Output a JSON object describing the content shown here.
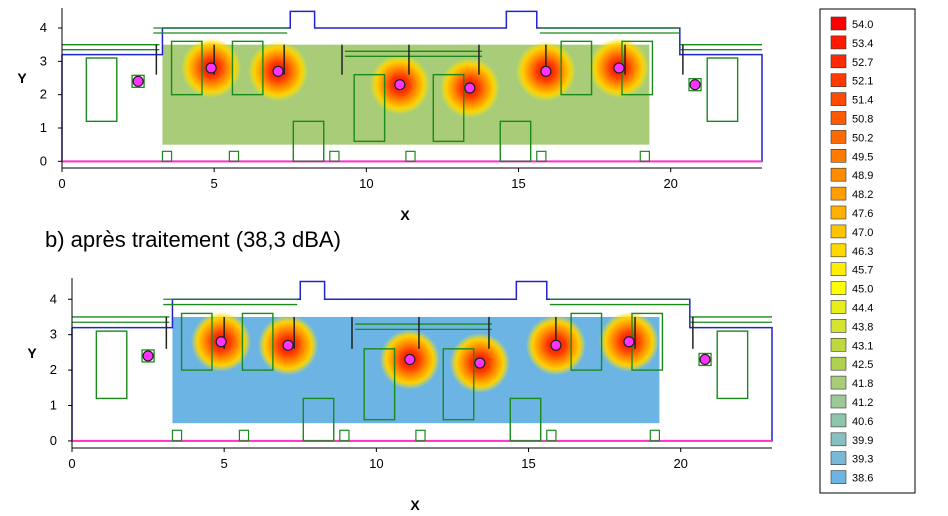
{
  "caption_b": "b) après traitement  (38,3 dBA)",
  "chart_data": [
    {
      "type": "heatmap",
      "id": "a",
      "xlabel": "X",
      "ylabel": "Y",
      "xlim": [
        0,
        23
      ],
      "ylim": [
        -0.2,
        4.6
      ],
      "xticks": [
        "0",
        "5",
        "10",
        "15",
        "20"
      ],
      "yticks": [
        "0",
        "1",
        "2",
        "3",
        "4"
      ],
      "field_color": "#a8cc78",
      "field_x": [
        3.3,
        19.3
      ],
      "field_y": [
        0.5,
        3.5
      ],
      "sources": [
        {
          "x": 4.9,
          "y": 2.8,
          "hot": true
        },
        {
          "x": 7.1,
          "y": 2.7,
          "hot": true
        },
        {
          "x": 11.1,
          "y": 2.3,
          "hot": true
        },
        {
          "x": 13.4,
          "y": 2.2,
          "hot": true
        },
        {
          "x": 15.9,
          "y": 2.7,
          "hot": true
        },
        {
          "x": 18.3,
          "y": 2.8,
          "hot": true
        },
        {
          "x": 2.5,
          "y": 2.4,
          "hot": false
        },
        {
          "x": 20.8,
          "y": 2.3,
          "hot": false
        }
      ]
    },
    {
      "type": "heatmap",
      "id": "b",
      "xlabel": "X",
      "ylabel": "Y",
      "xlim": [
        0,
        23
      ],
      "ylim": [
        -0.2,
        4.6
      ],
      "xticks": [
        "0",
        "5",
        "10",
        "15",
        "20"
      ],
      "yticks": [
        "0",
        "1",
        "2",
        "3",
        "4"
      ],
      "field_color": "#6cb4e4",
      "field_x": [
        3.3,
        19.3
      ],
      "field_y": [
        0.5,
        3.5
      ],
      "sources": [
        {
          "x": 4.9,
          "y": 2.8,
          "hot": true
        },
        {
          "x": 7.1,
          "y": 2.7,
          "hot": true
        },
        {
          "x": 11.1,
          "y": 2.3,
          "hot": true
        },
        {
          "x": 13.4,
          "y": 2.2,
          "hot": true
        },
        {
          "x": 15.9,
          "y": 2.7,
          "hot": true
        },
        {
          "x": 18.3,
          "y": 2.8,
          "hot": true
        },
        {
          "x": 2.5,
          "y": 2.4,
          "hot": false
        },
        {
          "x": 20.8,
          "y": 2.3,
          "hot": false
        }
      ]
    }
  ],
  "legend": [
    {
      "label": "54.0",
      "color": "#ff0000"
    },
    {
      "label": "53.4",
      "color": "#ff1a00"
    },
    {
      "label": "52.7",
      "color": "#ff2a00"
    },
    {
      "label": "52.1",
      "color": "#ff3a00"
    },
    {
      "label": "51.4",
      "color": "#ff4a00"
    },
    {
      "label": "50.8",
      "color": "#ff5a00"
    },
    {
      "label": "50.2",
      "color": "#ff6a00"
    },
    {
      "label": "49.5",
      "color": "#ff7c00"
    },
    {
      "label": "48.9",
      "color": "#ff8c00"
    },
    {
      "label": "48.2",
      "color": "#ff9e00"
    },
    {
      "label": "47.6",
      "color": "#ffb000"
    },
    {
      "label": "47.0",
      "color": "#ffc400"
    },
    {
      "label": "46.3",
      "color": "#ffd800"
    },
    {
      "label": "45.7",
      "color": "#ffee00"
    },
    {
      "label": "45.0",
      "color": "#ffff00"
    },
    {
      "label": "44.4",
      "color": "#e8ee1a"
    },
    {
      "label": "43.8",
      "color": "#d4e430"
    },
    {
      "label": "43.1",
      "color": "#c0d840"
    },
    {
      "label": "42.5",
      "color": "#b0d050"
    },
    {
      "label": "41.8",
      "color": "#a8cc78"
    },
    {
      "label": "41.2",
      "color": "#9cc898"
    },
    {
      "label": "40.6",
      "color": "#8ec4aa"
    },
    {
      "label": "39.9",
      "color": "#86c0c0"
    },
    {
      "label": "39.3",
      "color": "#78bad6"
    },
    {
      "label": "38.6",
      "color": "#6cb4e4"
    }
  ]
}
